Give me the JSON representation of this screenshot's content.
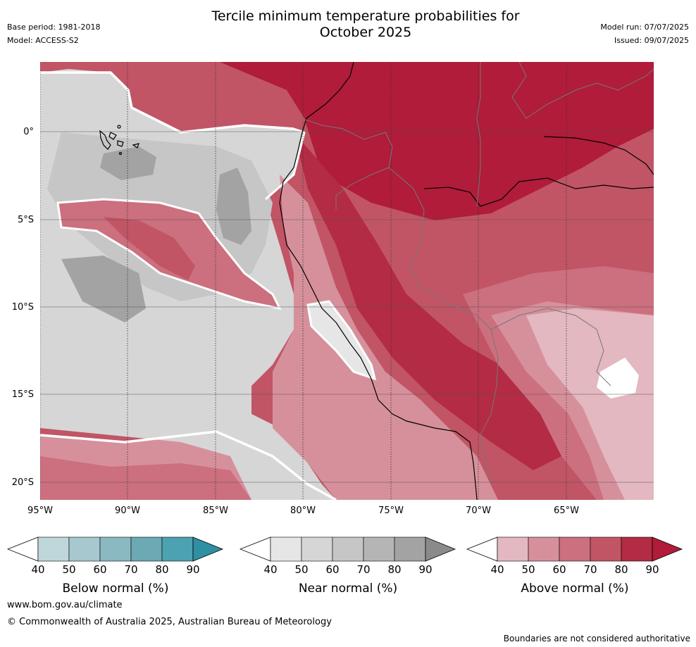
{
  "header": {
    "title_line1": "Tercile minimum temperature probabilities for",
    "title_line2": "October 2025",
    "base_period": "Base period: 1981-2018",
    "model": "Model: ACCESS-S2",
    "model_run": "Model run: 07/07/2025",
    "issued": "Issued: 09/07/2025"
  },
  "map": {
    "lat_labels": [
      "0°",
      "5°S",
      "10°S",
      "15°S",
      "20°S"
    ],
    "lon_labels": [
      "95°W",
      "90°W",
      "85°W",
      "80°W",
      "75°W",
      "70°W",
      "65°W"
    ]
  },
  "colorbars": [
    {
      "label": "Below normal (%)",
      "ticks": [
        "40",
        "50",
        "60",
        "70",
        "80",
        "90"
      ],
      "colors": [
        "#bfd6db",
        "#a6c8ce",
        "#8bb8c1",
        "#6ba9b4",
        "#4ca2b1",
        "#2f8fa3"
      ]
    },
    {
      "label": "Near normal (%)",
      "ticks": [
        "40",
        "50",
        "60",
        "70",
        "80",
        "90"
      ],
      "colors": [
        "#e6e6e6",
        "#d6d6d6",
        "#c6c6c6",
        "#b5b5b5",
        "#a3a3a3",
        "#8a8a8a"
      ]
    },
    {
      "label": "Above normal (%)",
      "ticks": [
        "40",
        "50",
        "60",
        "70",
        "80",
        "90"
      ],
      "colors": [
        "#e3b8c0",
        "#d6909c",
        "#cc6f7e",
        "#c15565",
        "#b32b44",
        "#b01c3a"
      ]
    }
  ],
  "footer": {
    "website": "www.bom.gov.au/climate",
    "copyright": "© Commonwealth of Australia 2025, Australian Bureau of Meteorology",
    "disclaimer": "Boundaries are not considered authoritative"
  }
}
